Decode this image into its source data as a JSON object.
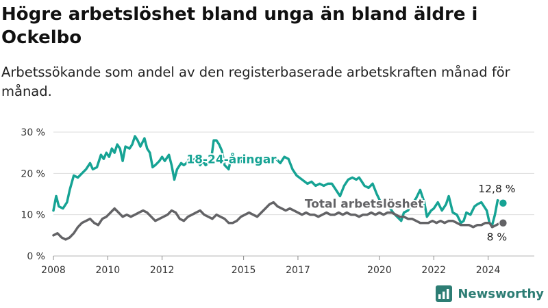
{
  "title": "Högre arbetslöshet bland unga än bland äldre i Ockelbo",
  "subtitle": "Arbetssökande som andel av den registerbaserade arbetskraften månad för månad.",
  "brand": {
    "name": "Newsworthy",
    "color": "#2d7d74"
  },
  "chart_data": {
    "type": "line",
    "ylim": [
      0,
      30
    ],
    "xlim": [
      2008,
      2025.7
    ],
    "yticks": [
      {
        "value": 0,
        "label": "0 %"
      },
      {
        "value": 10,
        "label": "10 %"
      },
      {
        "value": 20,
        "label": "20 %"
      },
      {
        "value": 30,
        "label": "30 %"
      }
    ],
    "xticks": [
      {
        "value": 2008,
        "label": "2008"
      },
      {
        "value": 2010,
        "label": "2010"
      },
      {
        "value": 2012,
        "label": "2012"
      },
      {
        "value": 2015,
        "label": "2015"
      },
      {
        "value": 2017,
        "label": "2017"
      },
      {
        "value": 2020,
        "label": "2020"
      },
      {
        "value": 2022,
        "label": "2022"
      },
      {
        "value": 2024,
        "label": "2024"
      }
    ],
    "grid": true,
    "series": [
      {
        "name": "18-24-åringar",
        "color": "#16a394",
        "end_label": "12,8 %",
        "points": [
          [
            2008.0,
            11
          ],
          [
            2008.1,
            14.5
          ],
          [
            2008.2,
            12
          ],
          [
            2008.35,
            11.5
          ],
          [
            2008.5,
            13
          ],
          [
            2008.6,
            16
          ],
          [
            2008.75,
            19.5
          ],
          [
            2008.9,
            19
          ],
          [
            2009.05,
            20
          ],
          [
            2009.2,
            21
          ],
          [
            2009.35,
            22.5
          ],
          [
            2009.45,
            21
          ],
          [
            2009.6,
            21.5
          ],
          [
            2009.75,
            24.5
          ],
          [
            2009.85,
            23.5
          ],
          [
            2009.95,
            25
          ],
          [
            2010.05,
            24
          ],
          [
            2010.15,
            26
          ],
          [
            2010.25,
            25
          ],
          [
            2010.35,
            27
          ],
          [
            2010.45,
            26
          ],
          [
            2010.55,
            23
          ],
          [
            2010.65,
            26.5
          ],
          [
            2010.8,
            26
          ],
          [
            2010.9,
            27
          ],
          [
            2011.0,
            29
          ],
          [
            2011.1,
            28
          ],
          [
            2011.2,
            26.5
          ],
          [
            2011.35,
            28.5
          ],
          [
            2011.45,
            26
          ],
          [
            2011.55,
            25
          ],
          [
            2011.65,
            21.5
          ],
          [
            2011.75,
            22
          ],
          [
            2011.9,
            23
          ],
          [
            2012.0,
            24
          ],
          [
            2012.1,
            23
          ],
          [
            2012.25,
            24.5
          ],
          [
            2012.35,
            22
          ],
          [
            2012.45,
            18.5
          ],
          [
            2012.55,
            21
          ],
          [
            2012.7,
            22.5
          ],
          [
            2012.8,
            22
          ],
          [
            2012.9,
            22.5
          ],
          [
            2013.0,
            23.5
          ],
          [
            2013.1,
            23
          ],
          [
            2013.2,
            23.5
          ],
          [
            2013.3,
            23
          ],
          [
            2013.4,
            22
          ],
          [
            2013.5,
            23
          ],
          [
            2013.6,
            22
          ],
          [
            2013.7,
            22.5
          ],
          [
            2013.8,
            23
          ],
          [
            2013.9,
            28
          ],
          [
            2014.0,
            28
          ],
          [
            2014.1,
            27
          ],
          [
            2014.2,
            25.5
          ],
          [
            2014.3,
            22
          ],
          [
            2014.45,
            21
          ],
          [
            2014.55,
            24
          ],
          [
            2014.7,
            23
          ],
          [
            2014.85,
            22.5
          ],
          [
            2015.0,
            23.5
          ],
          [
            2015.15,
            24
          ],
          [
            2015.3,
            23
          ],
          [
            2015.45,
            23.5
          ],
          [
            2015.6,
            23
          ],
          [
            2015.75,
            24
          ],
          [
            2015.9,
            23.5
          ],
          [
            2016.05,
            24
          ],
          [
            2016.2,
            23.5
          ],
          [
            2016.35,
            22.5
          ],
          [
            2016.5,
            24
          ],
          [
            2016.65,
            23.5
          ],
          [
            2016.8,
            21
          ],
          [
            2016.95,
            19.5
          ],
          [
            2017.15,
            18.5
          ],
          [
            2017.35,
            17.5
          ],
          [
            2017.5,
            18
          ],
          [
            2017.65,
            17
          ],
          [
            2017.8,
            17.5
          ],
          [
            2017.95,
            17
          ],
          [
            2018.1,
            17.5
          ],
          [
            2018.25,
            17.5
          ],
          [
            2018.4,
            16
          ],
          [
            2018.55,
            14.5
          ],
          [
            2018.7,
            17
          ],
          [
            2018.85,
            18.5
          ],
          [
            2019.0,
            19
          ],
          [
            2019.15,
            18.5
          ],
          [
            2019.25,
            19
          ],
          [
            2019.35,
            18
          ],
          [
            2019.45,
            17
          ],
          [
            2019.6,
            16.5
          ],
          [
            2019.75,
            17.5
          ],
          [
            2019.9,
            15
          ],
          [
            2020.05,
            13
          ],
          [
            2020.2,
            13.5
          ],
          [
            2020.35,
            12
          ],
          [
            2020.5,
            10.5
          ],
          [
            2020.65,
            9.5
          ],
          [
            2020.8,
            8.5
          ],
          [
            2020.9,
            10.5
          ],
          [
            2021.05,
            11
          ],
          [
            2021.2,
            12.5
          ],
          [
            2021.35,
            14
          ],
          [
            2021.5,
            16
          ],
          [
            2021.65,
            13
          ],
          [
            2021.75,
            9.5
          ],
          [
            2021.9,
            11
          ],
          [
            2022.0,
            11.5
          ],
          [
            2022.15,
            13
          ],
          [
            2022.3,
            11
          ],
          [
            2022.45,
            12.5
          ],
          [
            2022.55,
            14.5
          ],
          [
            2022.7,
            10.5
          ],
          [
            2022.85,
            10
          ],
          [
            2023.0,
            8
          ],
          [
            2023.1,
            8.5
          ],
          [
            2023.2,
            10.5
          ],
          [
            2023.35,
            10
          ],
          [
            2023.5,
            12
          ],
          [
            2023.6,
            12.5
          ],
          [
            2023.75,
            13
          ],
          [
            2023.85,
            12
          ],
          [
            2023.95,
            11
          ],
          [
            2024.05,
            8
          ],
          [
            2024.15,
            7.5
          ],
          [
            2024.25,
            10
          ],
          [
            2024.35,
            13.5
          ],
          [
            2024.45,
            13
          ],
          [
            2024.55,
            12.8
          ]
        ]
      },
      {
        "name": "Total arbetslöshet",
        "color": "#636366",
        "end_label": "8 %",
        "points": [
          [
            2008.0,
            5
          ],
          [
            2008.15,
            5.5
          ],
          [
            2008.3,
            4.5
          ],
          [
            2008.45,
            4
          ],
          [
            2008.6,
            4.5
          ],
          [
            2008.75,
            5.5
          ],
          [
            2008.9,
            7
          ],
          [
            2009.05,
            8
          ],
          [
            2009.2,
            8.5
          ],
          [
            2009.35,
            9
          ],
          [
            2009.5,
            8
          ],
          [
            2009.65,
            7.5
          ],
          [
            2009.8,
            9
          ],
          [
            2009.95,
            9.5
          ],
          [
            2010.1,
            10.5
          ],
          [
            2010.25,
            11.5
          ],
          [
            2010.4,
            10.5
          ],
          [
            2010.55,
            9.5
          ],
          [
            2010.7,
            10
          ],
          [
            2010.85,
            9.5
          ],
          [
            2011.0,
            10
          ],
          [
            2011.15,
            10.5
          ],
          [
            2011.3,
            11
          ],
          [
            2011.45,
            10.5
          ],
          [
            2011.6,
            9.5
          ],
          [
            2011.75,
            8.5
          ],
          [
            2011.9,
            9
          ],
          [
            2012.05,
            9.5
          ],
          [
            2012.2,
            10
          ],
          [
            2012.35,
            11
          ],
          [
            2012.5,
            10.5
          ],
          [
            2012.65,
            9
          ],
          [
            2012.8,
            8.5
          ],
          [
            2012.95,
            9.5
          ],
          [
            2013.1,
            10
          ],
          [
            2013.25,
            10.5
          ],
          [
            2013.4,
            11
          ],
          [
            2013.55,
            10
          ],
          [
            2013.7,
            9.5
          ],
          [
            2013.85,
            9
          ],
          [
            2014.0,
            10
          ],
          [
            2014.15,
            9.5
          ],
          [
            2014.3,
            9
          ],
          [
            2014.45,
            8
          ],
          [
            2014.6,
            8
          ],
          [
            2014.75,
            8.5
          ],
          [
            2014.9,
            9.5
          ],
          [
            2015.05,
            10
          ],
          [
            2015.2,
            10.5
          ],
          [
            2015.35,
            10
          ],
          [
            2015.5,
            9.5
          ],
          [
            2015.65,
            10.5
          ],
          [
            2015.8,
            11.5
          ],
          [
            2015.95,
            12.5
          ],
          [
            2016.1,
            13
          ],
          [
            2016.25,
            12
          ],
          [
            2016.4,
            11.5
          ],
          [
            2016.55,
            11
          ],
          [
            2016.7,
            11.5
          ],
          [
            2016.85,
            11
          ],
          [
            2017.0,
            10.5
          ],
          [
            2017.15,
            10
          ],
          [
            2017.3,
            10.5
          ],
          [
            2017.45,
            10
          ],
          [
            2017.6,
            10
          ],
          [
            2017.75,
            9.5
          ],
          [
            2017.9,
            10
          ],
          [
            2018.05,
            10.5
          ],
          [
            2018.2,
            10
          ],
          [
            2018.35,
            10
          ],
          [
            2018.5,
            10.5
          ],
          [
            2018.65,
            10
          ],
          [
            2018.8,
            10.5
          ],
          [
            2018.95,
            10
          ],
          [
            2019.1,
            10
          ],
          [
            2019.25,
            9.5
          ],
          [
            2019.4,
            10
          ],
          [
            2019.55,
            10
          ],
          [
            2019.7,
            10.5
          ],
          [
            2019.85,
            10
          ],
          [
            2020.0,
            10.5
          ],
          [
            2020.15,
            10
          ],
          [
            2020.3,
            10.5
          ],
          [
            2020.45,
            10.5
          ],
          [
            2020.6,
            10
          ],
          [
            2020.75,
            9.5
          ],
          [
            2020.9,
            9.5
          ],
          [
            2021.05,
            9
          ],
          [
            2021.2,
            9
          ],
          [
            2021.35,
            8.5
          ],
          [
            2021.5,
            8
          ],
          [
            2021.65,
            8
          ],
          [
            2021.8,
            8
          ],
          [
            2021.95,
            8.5
          ],
          [
            2022.1,
            8
          ],
          [
            2022.25,
            8.5
          ],
          [
            2022.4,
            8
          ],
          [
            2022.55,
            8.5
          ],
          [
            2022.7,
            8.5
          ],
          [
            2022.85,
            8
          ],
          [
            2023.0,
            7.5
          ],
          [
            2023.15,
            7.5
          ],
          [
            2023.3,
            7.5
          ],
          [
            2023.45,
            7
          ],
          [
            2023.6,
            7.5
          ],
          [
            2023.75,
            7.5
          ],
          [
            2023.9,
            8
          ],
          [
            2024.05,
            8
          ],
          [
            2024.15,
            7
          ],
          [
            2024.3,
            7.5
          ],
          [
            2024.45,
            8
          ],
          [
            2024.55,
            8
          ]
        ]
      }
    ],
    "annotations": [
      {
        "text": "18-24-åringar",
        "series": 0,
        "x": 2012.9,
        "y": 22.5
      },
      {
        "text": "Total arbetslöshet",
        "series": 1,
        "x": 2017.25,
        "y": 11.7
      }
    ]
  }
}
